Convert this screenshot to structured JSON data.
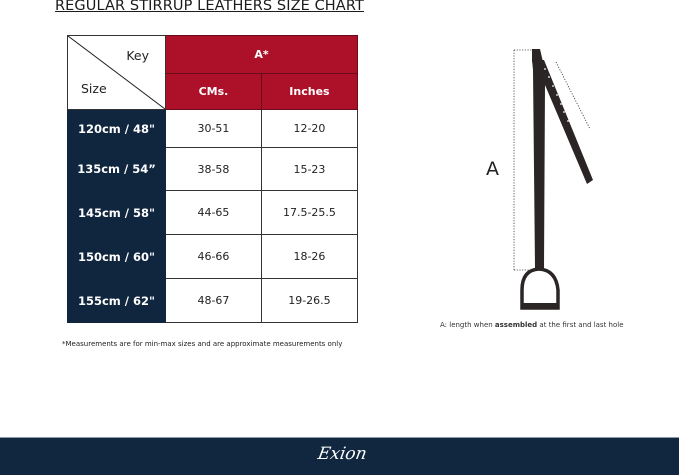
{
  "title": "REGULAR STIRRUP LEATHERS  SIZE CHART",
  "table": {
    "corner_key": "Key",
    "corner_size": "Size",
    "group_header": "A*",
    "columns": [
      "CMs.",
      "Inches"
    ],
    "rows": [
      {
        "size": "120cm / 48\"",
        "cms": "30-51",
        "inches": "12-20"
      },
      {
        "size": "135cm / 54”",
        "cms": "38-58",
        "inches": "15-23"
      },
      {
        "size": "145cm / 58\"",
        "cms": "44-65",
        "inches": "17.5-25.5"
      },
      {
        "size": "150cm / 60\"",
        "cms": "46-66",
        "inches": "18-26"
      },
      {
        "size": "155cm / 62\"",
        "cms": "48-67",
        "inches": "19-26.5"
      }
    ]
  },
  "note": "*Measurements are for min-max sizes and are approximate measurements only",
  "diagram": {
    "label": "A",
    "caption_pre": "A: length when ",
    "caption_bold": "assembled",
    "caption_post": " at the first and last hole"
  },
  "footer": {
    "logo": "Exion"
  },
  "colors": {
    "header_red": "#ad1129",
    "size_navy": "#10263f",
    "footer": "#11273f"
  }
}
